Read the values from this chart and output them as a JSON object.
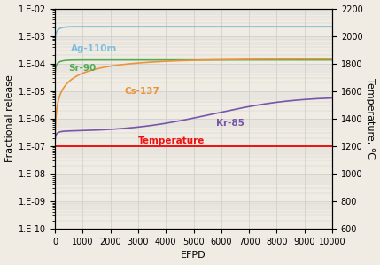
{
  "xlabel": "EFPD",
  "ylabel_left": "Fractional release",
  "ylabel_right": "Temperature, °C",
  "xlim": [
    0,
    10000
  ],
  "ylim_right": [
    600,
    2200
  ],
  "temperature_color": "#ee1111",
  "series": [
    {
      "name": "Ag-110m",
      "color": "#7bbedd"
    },
    {
      "name": "Sr-90",
      "color": "#55aa55"
    },
    {
      "name": "Cs-137",
      "color": "#e8943a"
    },
    {
      "name": "Kr-85",
      "color": "#7755aa"
    }
  ],
  "background_color": "#f0ece4",
  "grid_color": "#cccccc",
  "tick_fontsize": 7,
  "label_fontsize": 8,
  "curve_label_fontsize": 7.5,
  "linewidth": 1.2
}
